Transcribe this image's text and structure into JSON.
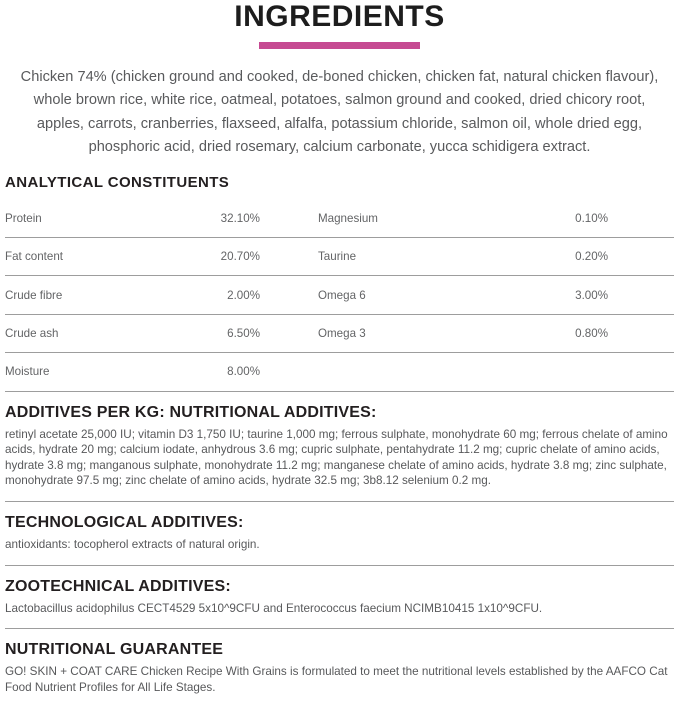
{
  "page": {
    "title": "INGREDIENTS",
    "accent_color": "#c64a92"
  },
  "ingredients": {
    "text": "Chicken 74% (chicken ground and cooked, de-boned chicken, chicken fat, natural chicken flavour), whole brown rice, white rice, oatmeal, potatoes, salmon ground and cooked, dried chicory root, apples, carrots, cranberries, flaxseed, alfalfa, potassium chloride, salmon oil, whole dried egg, phosphoric acid, dried rosemary, calcium carbonate, yucca schidigera extract."
  },
  "analytical_constituents": {
    "heading": "ANALYTICAL CONSTITUENTS",
    "rows": [
      {
        "label_left": "Protein",
        "value_left": "32.10%",
        "label_right": "Magnesium",
        "value_right": "0.10%"
      },
      {
        "label_left": "Fat content",
        "value_left": "20.70%",
        "label_right": "Taurine",
        "value_right": "0.20%"
      },
      {
        "label_left": "Crude fibre",
        "value_left": "2.00%",
        "label_right": "Omega 6",
        "value_right": "3.00%"
      },
      {
        "label_left": "Crude ash",
        "value_left": "6.50%",
        "label_right": "Omega 3",
        "value_right": "0.80%"
      },
      {
        "label_left": "Moisture",
        "value_left": "8.00%",
        "label_right": "",
        "value_right": ""
      }
    ]
  },
  "sections": [
    {
      "heading": "ADDITIVES PER KG: NUTRITIONAL ADDITIVES:",
      "body": "retinyl acetate 25,000 IU; vitamin D3 1,750 IU; taurine 1,000 mg; ferrous sulphate, monohydrate 60 mg; ferrous chelate of amino acids, hydrate 20 mg; calcium iodate, anhydrous 3.6 mg; cupric sulphate, pentahydrate 11.2 mg; cupric chelate of amino acids, hydrate 3.8 mg; manganous sulphate, monohydrate 11.2 mg; manganese chelate of amino acids, hydrate 3.8 mg; zinc sulphate, monohydrate 97.5 mg; zinc chelate of amino acids, hydrate 32.5 mg; 3b8.12 selenium 0.2 mg."
    },
    {
      "heading": "TECHNOLOGICAL ADDITIVES:",
      "body": "antioxidants: tocopherol extracts of natural origin."
    },
    {
      "heading": "ZOOTECHNICAL ADDITIVES:",
      "body": "Lactobacillus acidophilus CECT4529 5x10^9CFU and Enterococcus faecium NCIMB10415 1x10^9CFU."
    },
    {
      "heading": "NUTRITIONAL GUARANTEE",
      "body": "GO! SKIN + COAT CARE Chicken Recipe With Grains is formulated to meet the nutritional levels established by the AAFCO Cat Food Nutrient Profiles for All Life Stages."
    }
  ]
}
